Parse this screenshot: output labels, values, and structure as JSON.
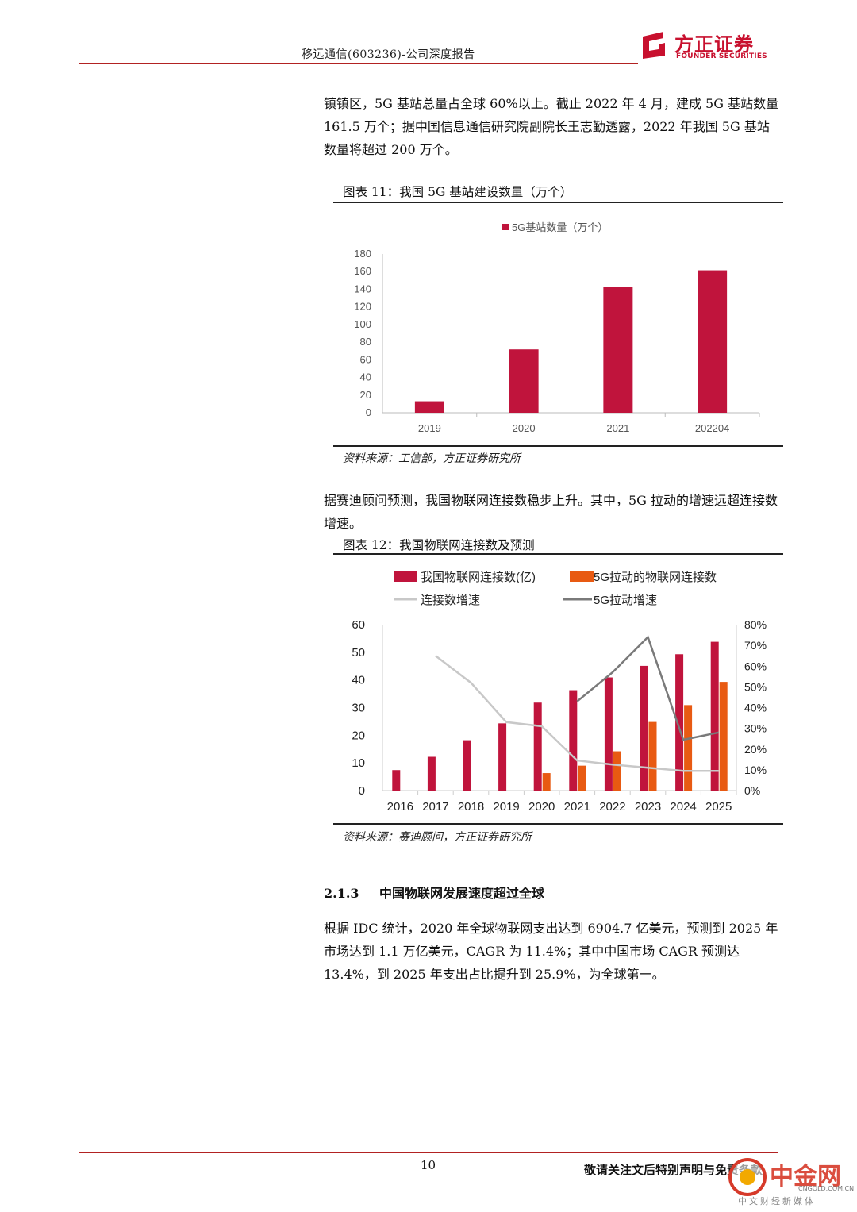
{
  "header": {
    "title": "移远通信(603236)-公司深度报告",
    "logo_cn": "方正证券",
    "logo_en": "FOUNDER SECURITIES"
  },
  "paragraphs": {
    "p1": "镇镇区，5G 基站总量占全球 60%以上。截止 2022 年 4 月，建成 5G 基站数量 161.5 万个；据中国信息通信研究院副院长王志勤透露，2022 年我国 5G 基站数量将超过 200 万个。",
    "p2": "据赛迪顾问预测，我国物联网连接数稳步上升。其中，5G 拉动的增速远超连接数增速。",
    "p3": "根据 IDC 统计，2020 年全球物联网支出达到 6904.7 亿美元，预测到 2025 年市场达到 1.1 万亿美元，CAGR 为 11.4%；其中中国市场 CAGR 预测达 13.4%，到 2025 年支出占比提升到 25.9%，为全球第一。"
  },
  "figure1": {
    "title": "图表 11：我国 5G 基站建设数量（万个）",
    "source": "资料来源：工信部，方正证券研究所"
  },
  "figure2": {
    "title": "图表 12：我国物联网连接数及预测",
    "source": "资料来源：赛迪顾问，方正证券研究所"
  },
  "section": {
    "number": "2.1.3",
    "title": "中国物联网发展速度超过全球"
  },
  "footer": {
    "page_number": "10",
    "note": "敬请关注文后特别声明与免责条款"
  },
  "watermark": {
    "name": "中金网",
    "domain": "CNGOLD.COM.CN",
    "tagline": "中文财经新媒体"
  },
  "colors": {
    "brand_red": "#c8102e",
    "bar_red": "#c0143c",
    "bar_orange": "#e85a12",
    "line_light": "#c8c8c8",
    "line_dark": "#7a7a7a"
  },
  "chart_data": [
    {
      "type": "bar",
      "categories": [
        "2019",
        "2020",
        "2021",
        "202204"
      ],
      "series": [
        {
          "name": "5G基站数量（万个）",
          "values": [
            13,
            71.8,
            142.5,
            161.5
          ]
        }
      ],
      "ylim": [
        0,
        180
      ],
      "yticks": [
        "0",
        "20",
        "40",
        "60",
        "80",
        "100",
        "120",
        "140",
        "160",
        "180"
      ],
      "legend": "top"
    },
    {
      "type": "bar+line",
      "categories": [
        "2016",
        "2017",
        "2018",
        "2019",
        "2020",
        "2021",
        "2022",
        "2023",
        "2024",
        "2025"
      ],
      "series": [
        {
          "name": "我国物联网连接数(亿)",
          "kind": "bar",
          "axis": "left",
          "values": [
            7.4,
            12.2,
            18.2,
            24.3,
            31.8,
            36.3,
            40.9,
            45.1,
            49.3,
            53.8
          ]
        },
        {
          "name": "5G拉动的物联网连接数",
          "kind": "bar",
          "axis": "left",
          "values": [
            null,
            null,
            null,
            null,
            6.3,
            9.0,
            14.2,
            24.8,
            30.9,
            39.3
          ]
        },
        {
          "name": "连接数增速",
          "kind": "line",
          "axis": "right",
          "values": [
            null,
            0.65,
            0.52,
            0.33,
            0.31,
            0.145,
            0.125,
            0.11,
            0.095,
            0.095
          ]
        },
        {
          "name": "5G拉动增速",
          "kind": "line",
          "axis": "right",
          "values": [
            null,
            null,
            null,
            null,
            null,
            0.43,
            0.57,
            0.74,
            0.245,
            0.28
          ]
        }
      ],
      "ylim_left": [
        0,
        60
      ],
      "yticks_left": [
        "0",
        "10",
        "20",
        "30",
        "40",
        "50",
        "60"
      ],
      "ylim_right": [
        0,
        0.8
      ],
      "yticks_right": [
        "0%",
        "10%",
        "20%",
        "30%",
        "40%",
        "50%",
        "60%",
        "70%",
        "80%"
      ],
      "legend": "top"
    }
  ]
}
